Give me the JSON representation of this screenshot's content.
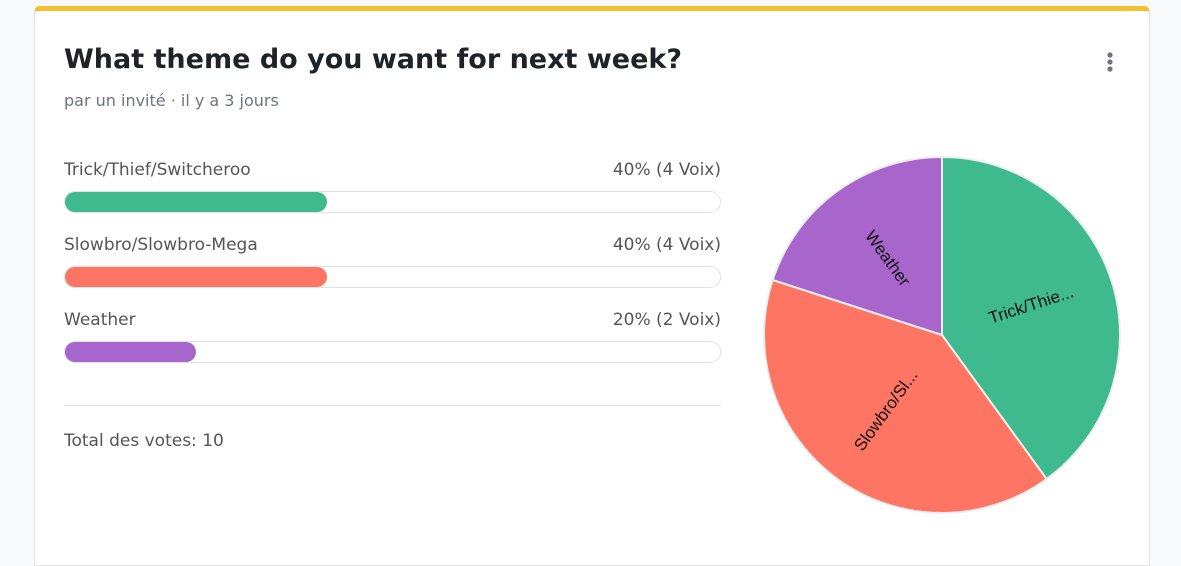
{
  "poll": {
    "title": "What theme do you want for next week?",
    "subtitle": "par un invité · il y a 3 jours",
    "options": [
      {
        "label": "Trick/Thief/Switcheroo",
        "percent": 40,
        "percent_label": "40% (4 Voix)",
        "pie_label": "Trick/Thie...",
        "color": "#3fba8f"
      },
      {
        "label": "Slowbro/Slowbro-Mega",
        "percent": 40,
        "percent_label": "40% (4 Voix)",
        "pie_label": "Slowbro/Sl...",
        "color": "#ff7563"
      },
      {
        "label": "Weather",
        "percent": 20,
        "percent_label": "20% (2 Voix)",
        "pie_label": "Weather",
        "color": "#a865cc"
      }
    ],
    "total": "Total des votes: 10"
  }
}
